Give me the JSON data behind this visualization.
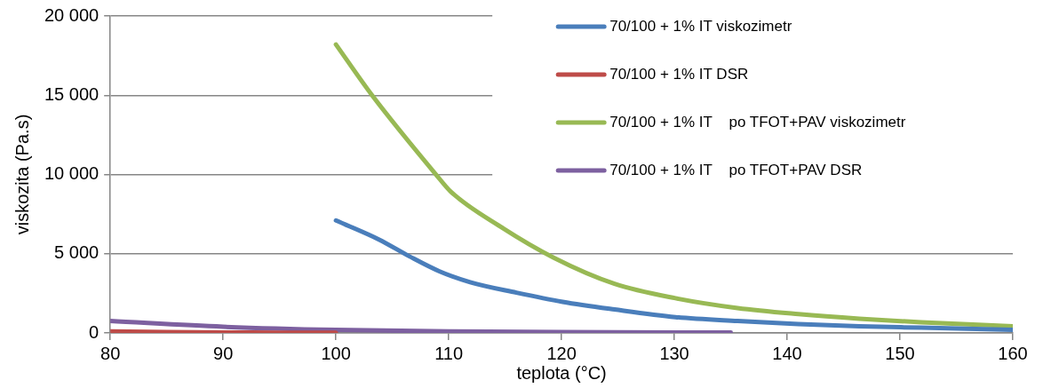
{
  "chart_data": {
    "type": "line",
    "xlabel": "teplota (°C)",
    "ylabel": "viskozita (Pa.s)",
    "xlim": [
      80,
      160
    ],
    "xticks": [
      80,
      90,
      100,
      110,
      120,
      130,
      140,
      150,
      160
    ],
    "ylim": [
      0,
      20000
    ],
    "yticks": [
      {
        "value": 0,
        "label": "0"
      },
      {
        "value": 5000,
        "label": "5 000"
      },
      {
        "value": 10000,
        "label": "10 000"
      },
      {
        "value": 15000,
        "label": "15 000"
      },
      {
        "value": 20000,
        "label": "20 000"
      }
    ],
    "grid": "y",
    "legend": "top right",
    "marker": "none",
    "line_style": "solid",
    "series": [
      {
        "name": "70/100 + 1% IT viskozimetr",
        "color": "#4a7ebb",
        "x": [
          100,
          103.8,
          106.5,
          109.2,
          111.9,
          116,
          120.1,
          124.7,
          130.1,
          135.6,
          141,
          146.4,
          151.9,
          160
        ],
        "values": [
          7100,
          5900,
          4840,
          3880,
          3200,
          2540,
          1960,
          1480,
          1000,
          750,
          560,
          420,
          330,
          190
        ]
      },
      {
        "name": "70/100 + 1% IT DSR",
        "color": "#be4b48",
        "x": [
          80,
          85,
          90,
          95,
          100
        ],
        "values": [
          100,
          60,
          30,
          20,
          10
        ]
      },
      {
        "name": "70/100 + 1% IT    po TFOT+PAV viskozimetr",
        "color": "#98b954",
        "x": [
          100,
          103.2,
          108.9,
          110.2,
          114.6,
          119.3,
          124.7,
          130.1,
          135.6,
          141,
          146.4,
          151.9,
          160
        ],
        "values": [
          18200,
          15000,
          9970,
          8900,
          6700,
          4750,
          3100,
          2190,
          1570,
          1190,
          900,
          670,
          420
        ]
      },
      {
        "name": "70/100 + 1% IT    po TFOT+PAV DSR",
        "color": "#7d60a0",
        "x": [
          80,
          90,
          100,
          110,
          120,
          135
        ],
        "values": [
          750,
          390,
          190,
          100,
          50,
          30
        ]
      }
    ]
  }
}
